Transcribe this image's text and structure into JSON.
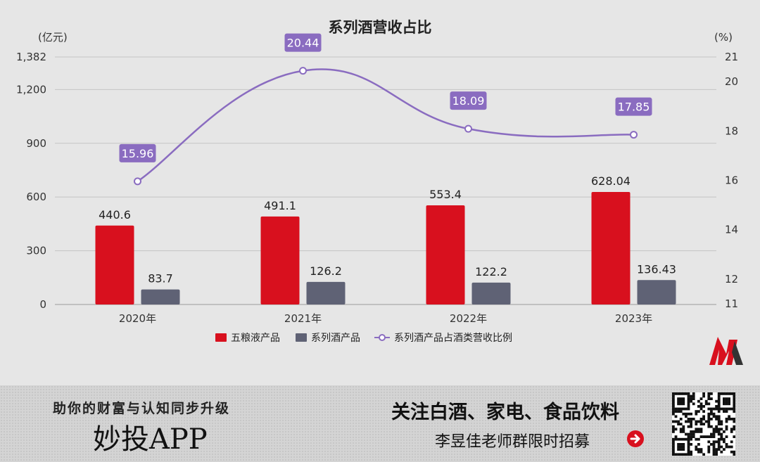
{
  "chart_data": {
    "type": "bar",
    "title": "系列酒营收占比",
    "left_unit": "(亿元)",
    "right_unit": "(%)",
    "categories": [
      "2020年",
      "2021年",
      "2022年",
      "2023年"
    ],
    "series": [
      {
        "name": "五粮液产品",
        "type": "bar",
        "axis": "left",
        "color": "#d8101e",
        "values": [
          440.6,
          491.1,
          553.4,
          628.04
        ],
        "labels": [
          "440.6",
          "491.1",
          "553.4",
          "628.04"
        ]
      },
      {
        "name": "系列酒产品",
        "type": "bar",
        "axis": "left",
        "color": "#5f6275",
        "values": [
          83.7,
          126.2,
          122.2,
          136.43
        ],
        "labels": [
          "83.7",
          "126.2",
          "122.2",
          "136.43"
        ]
      },
      {
        "name": "系列酒产品占酒类营收比例",
        "type": "line",
        "axis": "right",
        "color": "#8a6cc0",
        "values": [
          15.96,
          20.44,
          18.09,
          17.85
        ],
        "labels": [
          "15.96",
          "20.44",
          "18.09",
          "17.85"
        ]
      }
    ],
    "left_axis": {
      "ticks": [
        "0",
        "300",
        "600",
        "900",
        "1,200",
        "1,382"
      ],
      "tick_values": [
        0,
        300,
        600,
        900,
        1200,
        1382
      ],
      "range": [
        0,
        1382
      ]
    },
    "right_axis": {
      "ticks": [
        "11",
        "12",
        "14",
        "16",
        "18",
        "20",
        "21"
      ],
      "tick_values": [
        11,
        12,
        14,
        16,
        18,
        20,
        21
      ],
      "range": [
        11,
        21
      ]
    },
    "grid": true,
    "legend_position": "bottom"
  },
  "banner": {
    "tagline": "助你的财富与认知同步升级",
    "app_name": "妙投APP",
    "headline": "关注白酒、家电、食品饮料",
    "subline": "李昱佳老师群限时招募"
  },
  "icons": {
    "arrow": "arrow-right-icon",
    "qr": "qr-code-icon",
    "logo": "brand-logo-icon"
  }
}
